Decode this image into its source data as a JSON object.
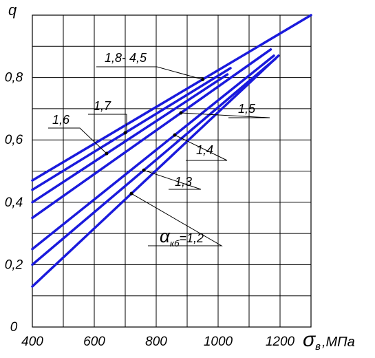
{
  "chart_data": {
    "type": "line",
    "xlabel_symbol": "σ",
    "xlabel_subscript": "в",
    "xlabel_unit": ",МПа",
    "ylabel": "q",
    "xlim": [
      400,
      1300
    ],
    "ylim": [
      0,
      1.0
    ],
    "grid": true,
    "x_ticks": [
      "400",
      "600",
      "800",
      "1000",
      "1200"
    ],
    "y_ticks": [
      "0",
      "0,2",
      "0,4",
      "0,6",
      "0,8"
    ],
    "series": [
      {
        "name": "1,8- 4,5",
        "x": [
          400,
          1300
        ],
        "y": [
          0.47,
          1.0
        ]
      },
      {
        "name": "1,7",
        "x": [
          400,
          1040
        ],
        "y": [
          0.44,
          0.83
        ]
      },
      {
        "name": "1,6",
        "x": [
          400,
          1030
        ],
        "y": [
          0.4,
          0.81
        ]
      },
      {
        "name": "1,5",
        "x": [
          400,
          1170
        ],
        "y": [
          0.35,
          0.89
        ]
      },
      {
        "name": "1,4",
        "x": [
          400,
          1180
        ],
        "y": [
          0.25,
          0.87
        ]
      },
      {
        "name": "1,3",
        "x": [
          400,
          1185
        ],
        "y": [
          0.2,
          0.86
        ]
      },
      {
        "name": "=1,2",
        "x": [
          400,
          1195
        ],
        "y": [
          0.13,
          0.87
        ]
      }
    ],
    "annotations": [
      {
        "series": 0,
        "text": "1,8- 4,5"
      },
      {
        "series": 1,
        "text": "1,7"
      },
      {
        "series": 2,
        "text": "1,6"
      },
      {
        "series": 3,
        "text": "1,5"
      },
      {
        "series": 4,
        "text": "1,4"
      },
      {
        "series": 5,
        "text": "1,3"
      },
      {
        "series": 6,
        "symbol": "α",
        "subscript": "кб",
        "text": "=1,2"
      }
    ],
    "line_color": "#1a1adc"
  }
}
